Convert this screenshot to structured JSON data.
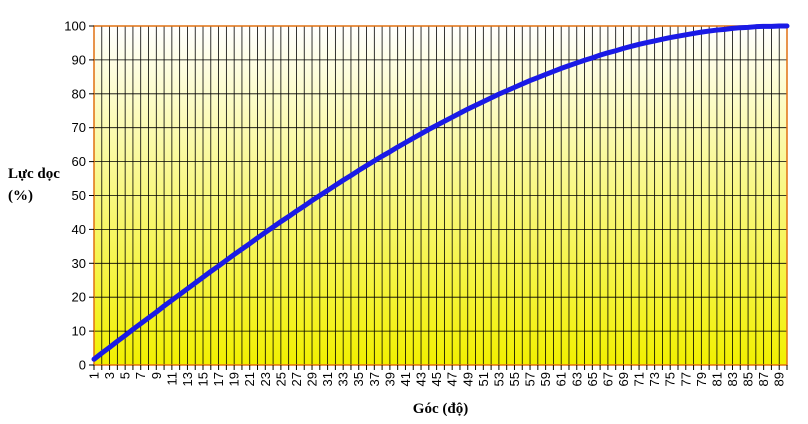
{
  "chart_data": {
    "type": "line",
    "title": "",
    "xlabel": "Góc (độ)",
    "ylabel_lines": [
      "Lực dọc",
      "(%)"
    ],
    "x_ticks": [
      1,
      3,
      5,
      7,
      9,
      11,
      13,
      15,
      17,
      19,
      21,
      23,
      25,
      27,
      29,
      31,
      33,
      35,
      37,
      39,
      41,
      43,
      45,
      47,
      49,
      51,
      53,
      55,
      57,
      59,
      61,
      63,
      65,
      67,
      69,
      71,
      73,
      75,
      77,
      79,
      81,
      83,
      85,
      87,
      89
    ],
    "y_ticks": [
      0,
      10,
      20,
      30,
      40,
      50,
      60,
      70,
      80,
      90,
      100
    ],
    "xlim": [
      1,
      90
    ],
    "ylim": [
      0,
      100
    ],
    "grid": true,
    "legend": "none",
    "colors": {
      "line": "#1a1ae6",
      "frame": "#e07010",
      "grid": "#000000",
      "gradient_top": "#ffffff",
      "gradient_bottom": "#f2f000"
    },
    "series": [
      {
        "x": [
          1,
          2,
          3,
          4,
          5,
          6,
          7,
          8,
          9,
          10,
          11,
          12,
          13,
          14,
          15,
          16,
          17,
          18,
          19,
          20,
          21,
          22,
          23,
          24,
          25,
          26,
          27,
          28,
          29,
          30,
          31,
          32,
          33,
          34,
          35,
          36,
          37,
          38,
          39,
          40,
          41,
          42,
          43,
          44,
          45,
          46,
          47,
          48,
          49,
          50,
          51,
          52,
          53,
          54,
          55,
          56,
          57,
          58,
          59,
          60,
          61,
          62,
          63,
          64,
          65,
          66,
          67,
          68,
          69,
          70,
          71,
          72,
          73,
          74,
          75,
          76,
          77,
          78,
          79,
          80,
          81,
          82,
          83,
          84,
          85,
          86,
          87,
          88,
          89,
          90
        ],
        "y": [
          1.7,
          3.5,
          5.2,
          7.0,
          8.7,
          10.5,
          12.2,
          13.9,
          15.6,
          17.4,
          19.1,
          20.8,
          22.5,
          24.2,
          25.9,
          27.6,
          29.2,
          30.9,
          32.6,
          34.2,
          35.8,
          37.5,
          39.1,
          40.7,
          42.3,
          43.8,
          45.4,
          46.9,
          48.5,
          50.0,
          51.5,
          53.0,
          54.5,
          55.9,
          57.4,
          58.8,
          60.2,
          61.6,
          62.9,
          64.3,
          65.6,
          66.9,
          68.2,
          69.5,
          70.7,
          71.9,
          73.1,
          74.3,
          75.5,
          76.6,
          77.7,
          78.8,
          79.9,
          80.9,
          81.9,
          82.9,
          83.9,
          84.8,
          85.7,
          86.6,
          87.5,
          88.3,
          89.1,
          89.9,
          90.6,
          91.4,
          92.1,
          92.7,
          93.4,
          94.0,
          94.6,
          95.1,
          95.6,
          96.1,
          96.6,
          97.0,
          97.4,
          97.8,
          98.2,
          98.5,
          98.8,
          99.0,
          99.3,
          99.5,
          99.6,
          99.8,
          99.9,
          99.9,
          100.0,
          100.0
        ]
      }
    ]
  }
}
